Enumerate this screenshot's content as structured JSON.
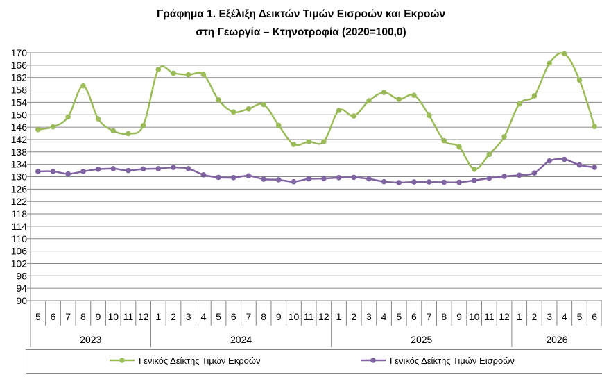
{
  "chart_data": {
    "type": "line",
    "title_line1": "Γράφημα 1. Εξέλιξη Δεικτών Τιμών Εισροών και Εκροών",
    "title_line2": "στη Γεωργία – Κτηνοτροφία (2020=100,0)",
    "months": [
      "5",
      "6",
      "7",
      "8",
      "9",
      "10",
      "11",
      "12",
      "1",
      "2",
      "3",
      "4",
      "5",
      "6",
      "7",
      "8",
      "9",
      "10",
      "11",
      "12",
      "1",
      "2",
      "3",
      "4",
      "5",
      "6",
      "7",
      "8",
      "9",
      "10",
      "11",
      "12",
      "1",
      "2",
      "3",
      "4",
      "5",
      "6"
    ],
    "years": [
      {
        "label": "2023",
        "count": 8
      },
      {
        "label": "2024",
        "count": 12
      },
      {
        "label": "2025",
        "count": 12
      },
      {
        "label": "2026",
        "count": 6
      }
    ],
    "ylim": [
      90,
      170
    ],
    "yticks": [
      90,
      94,
      98,
      102,
      106,
      110,
      114,
      118,
      122,
      126,
      130,
      134,
      138,
      142,
      146,
      150,
      154,
      158,
      162,
      166,
      170
    ],
    "grid": true,
    "legend_position": "bottom",
    "series": [
      {
        "name": "Γενικός Δείκτης Τιμών Εκροών",
        "color": "#9BBB59",
        "values": [
          145.2,
          146.1,
          149.3,
          159.3,
          148.7,
          144.8,
          143.9,
          146.5,
          164.6,
          163.4,
          162.9,
          163.0,
          154.8,
          150.9,
          151.9,
          153.3,
          146.6,
          140.4,
          141.3,
          141.3,
          151.4,
          149.6,
          154.5,
          157.2,
          155.0,
          156.3,
          149.8,
          141.6,
          139.6,
          132.4,
          137.2,
          142.9,
          153.5,
          156.1,
          166.6,
          169.7,
          161.2,
          146.2
        ]
      },
      {
        "name": "Γενικός Δείκτης Τιμών Εισροών",
        "color": "#8064A2",
        "values": [
          131.7,
          131.7,
          130.9,
          131.7,
          132.4,
          132.6,
          132.0,
          132.5,
          132.6,
          133.0,
          132.6,
          130.6,
          129.8,
          129.7,
          130.3,
          129.2,
          129.0,
          128.4,
          129.3,
          129.4,
          129.7,
          129.8,
          129.3,
          128.4,
          128.1,
          128.3,
          128.3,
          128.2,
          128.2,
          128.8,
          129.5,
          130.1,
          130.5,
          131.2,
          135.1,
          135.6,
          133.8,
          133.0
        ]
      }
    ]
  }
}
